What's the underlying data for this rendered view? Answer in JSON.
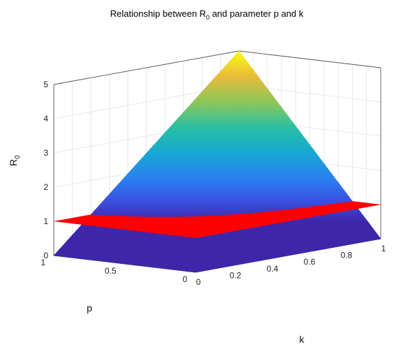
{
  "chart_data": {
    "type": "surface",
    "title": {
      "prefix": "Relationship between R",
      "subscript": "0",
      "suffix": " and parameter p and k"
    },
    "xlabel": "k",
    "ylabel": "p",
    "zlabel": {
      "main": "R",
      "subscript": "0"
    },
    "xlim": [
      0,
      1
    ],
    "ylim": [
      0,
      1
    ],
    "zlim": [
      0,
      5
    ],
    "x_ticks": [
      "0",
      "0.2",
      "0.4",
      "0.6",
      "0.8",
      "1"
    ],
    "y_ticks": [
      "0",
      "0.5",
      "1"
    ],
    "z_ticks": [
      "0",
      "1",
      "2",
      "3",
      "4",
      "5"
    ],
    "grid": true,
    "colormap": "parula",
    "series": [
      {
        "kind": "surface",
        "formula": "R0 = 5 * p * k",
        "corner_values": [
          {
            "k": 0,
            "p": 0,
            "R0": 0
          },
          {
            "k": 1,
            "p": 0,
            "R0": 0
          },
          {
            "k": 0,
            "p": 1,
            "R0": 0
          },
          {
            "k": 1,
            "p": 1,
            "R0": 5
          }
        ]
      },
      {
        "kind": "plane",
        "R0": 1,
        "color": "#ff0000"
      }
    ]
  }
}
